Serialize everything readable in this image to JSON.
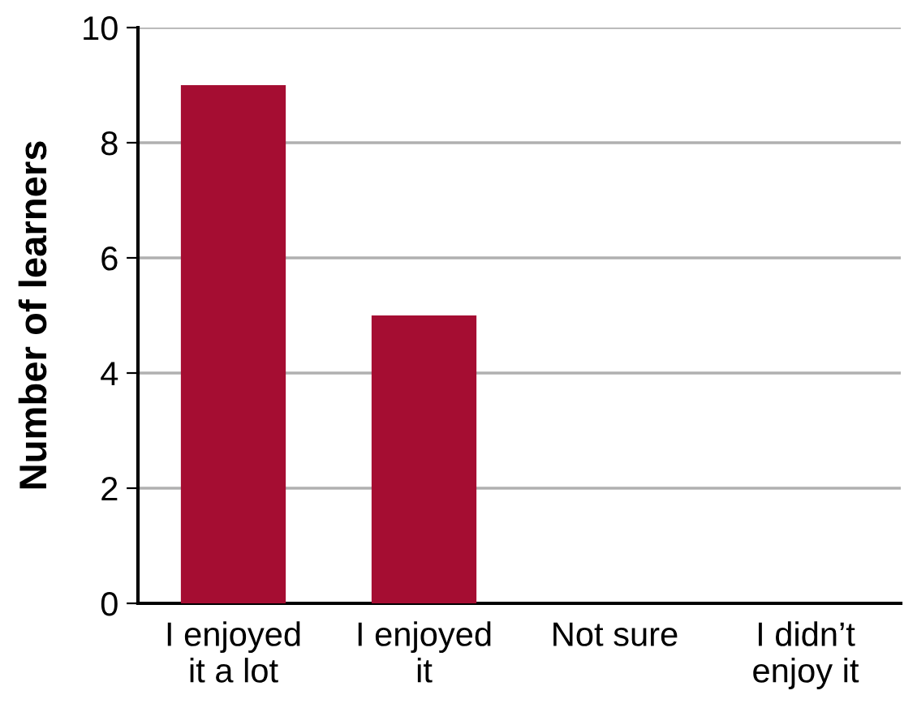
{
  "chart_data": {
    "type": "bar",
    "ylabel": "Number of learners",
    "categories": [
      "I enjoyed\nit a lot",
      "I enjoyed\nit",
      "Not sure",
      "I didn’t\nenjoy it"
    ],
    "values": [
      9,
      5,
      0,
      0
    ],
    "color": "#a50d32",
    "ylim": [
      0,
      10
    ],
    "yticks": [
      0,
      2,
      4,
      6,
      8,
      10
    ],
    "grid": "y",
    "legend": false
  }
}
